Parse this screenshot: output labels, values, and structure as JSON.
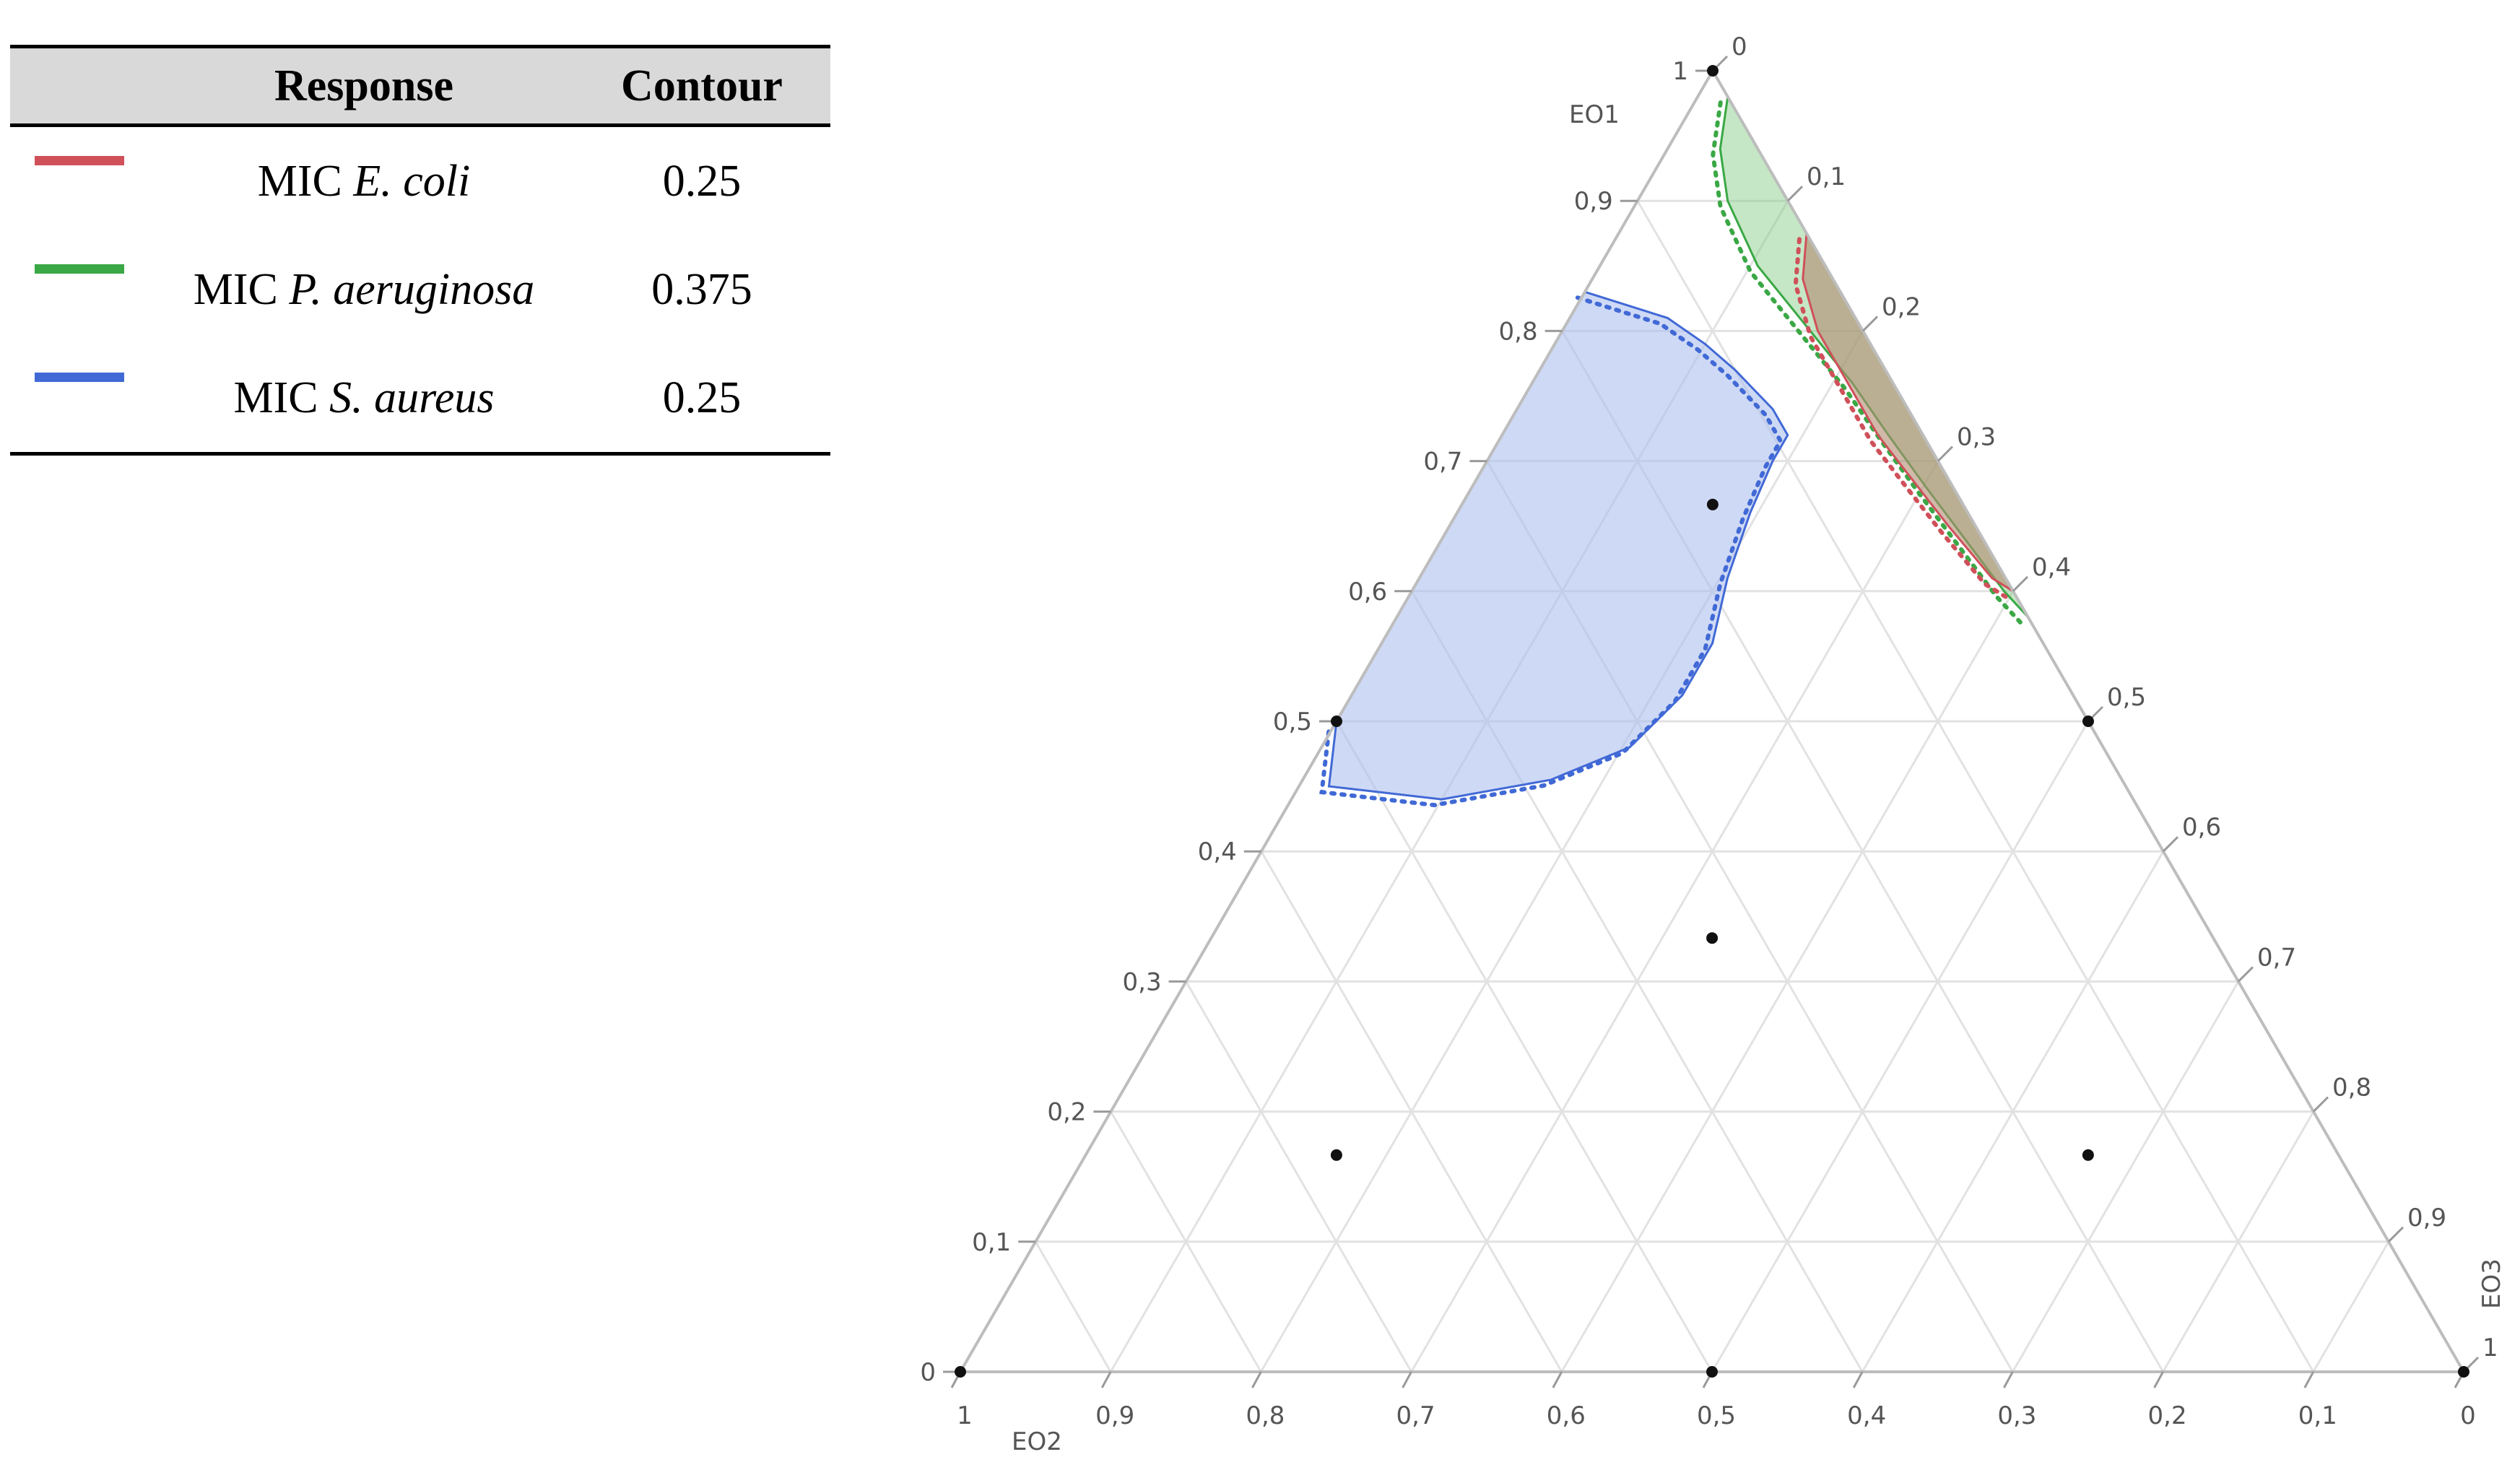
{
  "legend": {
    "headers": {
      "swatch": "",
      "response": "Response",
      "contour": "Contour"
    },
    "rows": [
      {
        "prefix": "MIC ",
        "organism": "E. coli",
        "contour": "0.25",
        "color": "#d0505a"
      },
      {
        "prefix": "MIC ",
        "organism": "P. aeruginosa",
        "contour": "0.375",
        "color": "#3aa845"
      },
      {
        "prefix": "MIC ",
        "organism": "S. aureus",
        "contour": "0.25",
        "color": "#4169d6"
      }
    ]
  },
  "chart_data": {
    "type": "ternary-contour",
    "axes": {
      "top": {
        "label": "EO1"
      },
      "left": {
        "label": "EO2"
      },
      "right": {
        "label": "EO3"
      }
    },
    "tick_values": [
      0,
      0.1,
      0.2,
      0.3,
      0.4,
      0.5,
      0.6,
      0.7,
      0.8,
      0.9,
      1
    ],
    "tick_labels": [
      "0",
      "0,1",
      "0,2",
      "0,3",
      "0,4",
      "0,5",
      "0,6",
      "0,7",
      "0,8",
      "0,9",
      "1"
    ],
    "grid": true,
    "design_points": [
      {
        "EO1": 1.0,
        "EO2": 0.0,
        "EO3": 0.0
      },
      {
        "EO1": 0.0,
        "EO2": 1.0,
        "EO3": 0.0
      },
      {
        "EO1": 0.0,
        "EO2": 0.0,
        "EO3": 1.0
      },
      {
        "EO1": 0.5,
        "EO2": 0.5,
        "EO3": 0.0
      },
      {
        "EO1": 0.5,
        "EO2": 0.0,
        "EO3": 0.5
      },
      {
        "EO1": 0.0,
        "EO2": 0.5,
        "EO3": 0.5
      },
      {
        "EO1": 0.6667,
        "EO2": 0.1667,
        "EO3": 0.1667
      },
      {
        "EO1": 0.1667,
        "EO2": 0.6667,
        "EO3": 0.1667
      },
      {
        "EO1": 0.1667,
        "EO2": 0.1667,
        "EO3": 0.6667
      },
      {
        "EO1": 0.3333,
        "EO2": 0.3333,
        "EO3": 0.3333
      }
    ],
    "contours": [
      {
        "response": "MIC E. coli",
        "level": 0.25,
        "color": "#d0505a",
        "fill": "#b38a72",
        "fill_opacity": 0.6,
        "boundary": [
          [
            0.875,
            0.0,
            0.125
          ],
          [
            0.84,
            0.02,
            0.14
          ],
          [
            0.8,
            0.03,
            0.17
          ],
          [
            0.76,
            0.03,
            0.21
          ],
          [
            0.72,
            0.03,
            0.25
          ],
          [
            0.69,
            0.025,
            0.285
          ],
          [
            0.65,
            0.018,
            0.332
          ],
          [
            0.61,
            0.009,
            0.381
          ],
          [
            0.6,
            0.0,
            0.4
          ]
        ]
      },
      {
        "response": "MIC P. aeruginosa",
        "level": 0.375,
        "color": "#3aa845",
        "fill": "#7fc97f",
        "fill_opacity": 0.45,
        "boundary": [
          [
            0.98,
            0.0,
            0.02
          ],
          [
            0.94,
            0.025,
            0.035
          ],
          [
            0.9,
            0.04,
            0.06
          ],
          [
            0.85,
            0.045,
            0.105
          ],
          [
            0.8,
            0.035,
            0.165
          ],
          [
            0.76,
            0.027,
            0.213
          ],
          [
            0.72,
            0.023,
            0.257
          ],
          [
            0.68,
            0.018,
            0.302
          ],
          [
            0.64,
            0.012,
            0.348
          ],
          [
            0.6,
            0.006,
            0.394
          ],
          [
            0.58,
            0.0,
            0.42
          ]
        ]
      },
      {
        "response": "MIC S. aureus",
        "level": 0.25,
        "color": "#4169d6",
        "fill": "#aec0ee",
        "fill_opacity": 0.6,
        "boundary": [
          [
            0.83,
            0.17,
            0.0
          ],
          [
            0.81,
            0.125,
            0.065
          ],
          [
            0.79,
            0.11,
            0.1
          ],
          [
            0.77,
            0.1,
            0.13
          ],
          [
            0.74,
            0.09,
            0.17
          ],
          [
            0.72,
            0.09,
            0.19
          ],
          [
            0.7,
            0.11,
            0.19
          ],
          [
            0.66,
            0.145,
            0.195
          ],
          [
            0.61,
            0.185,
            0.205
          ],
          [
            0.56,
            0.22,
            0.22
          ],
          [
            0.52,
            0.26,
            0.22
          ],
          [
            0.48,
            0.315,
            0.205
          ],
          [
            0.455,
            0.38,
            0.165
          ],
          [
            0.44,
            0.46,
            0.1
          ],
          [
            0.45,
            0.53,
            0.02
          ],
          [
            0.5,
            0.5,
            0.0
          ]
        ]
      }
    ]
  }
}
